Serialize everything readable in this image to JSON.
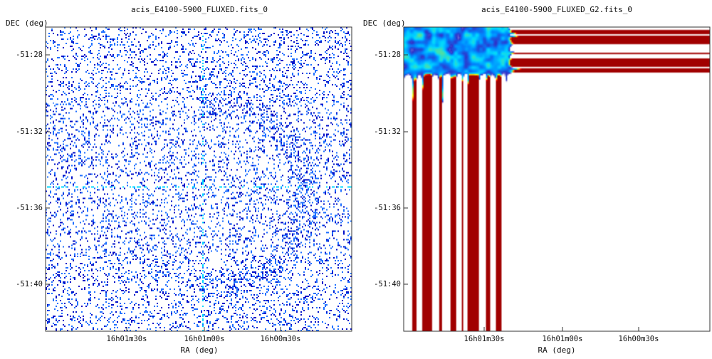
{
  "chart_data": [
    {
      "type": "heatmap",
      "title": "acis_E4100-5900_FLUXED.fits_0",
      "xlabel": "RA (deg)",
      "ylabel": "DEC (deg)",
      "x_ticks": [
        "16h01m30s",
        "16h01m00s",
        "16h00m30s"
      ],
      "y_ticks": [
        "-51:28",
        "-51:32",
        "-51:36",
        "-51:40"
      ],
      "rendering": "sparse pixel counts",
      "colormap": [
        "#ffffff",
        "#00d8ff",
        "#2070ff",
        "#0010c8"
      ],
      "grid": false
    },
    {
      "type": "heatmap",
      "title": "acis_E4100-5900_FLUXED_G2.fits_0",
      "xlabel": "RA (deg)",
      "ylabel": "DEC (deg)",
      "x_ticks": [
        "16h01m30s",
        "16h01m00s",
        "16h00m30s"
      ],
      "y_ticks": [
        "-51:28",
        "-51:32",
        "-51:36",
        "-51:40"
      ],
      "rendering": "gaussian smoothed",
      "colormap": [
        "#ffffff",
        "#3030c8",
        "#0088ff",
        "#00d8ff",
        "#60e090",
        "#ffff00",
        "#ff8000",
        "#ff0000",
        "#a00000"
      ],
      "grid": false
    }
  ]
}
